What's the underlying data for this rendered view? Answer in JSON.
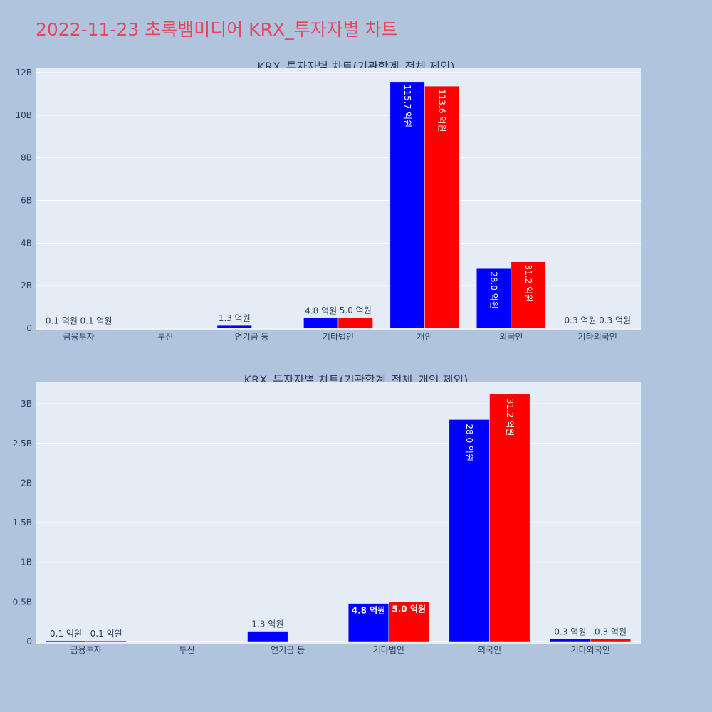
{
  "page": {
    "title": "2022-11-23 초록뱀미디어 KRX_투자자별 차트"
  },
  "colors": {
    "background": "#b0c4de",
    "plot_bg": "#e5ecf6",
    "title": "#e8455e",
    "text": "#2a3f5f",
    "series_1": "#0000ff",
    "series_2": "#ff0000"
  },
  "chart_data": [
    {
      "type": "bar",
      "title": "KRX_투자자별 차트(기관합계_전체 제외)",
      "categories": [
        "금융투자",
        "투신",
        "연기금 등",
        "기타법인",
        "개인",
        "외국인",
        "기타외국인"
      ],
      "series": [
        {
          "color": "#0000ff",
          "values": [
            10000000,
            null,
            130000000,
            480000000,
            11570000000,
            2800000000,
            30000000
          ],
          "labels": [
            "0.1 억원",
            "",
            "1.3 억원",
            "4.8 억원",
            "115.7 억원",
            "28.0 억원",
            "0.3 억원"
          ]
        },
        {
          "color": "#ff0000",
          "values": [
            10000000,
            null,
            null,
            500000000,
            11360000000,
            3120000000,
            30000000
          ],
          "labels": [
            "0.1 억원",
            "",
            "",
            "5.0 억원",
            "113.6 억원",
            "31.2 억원",
            "0.3 억원"
          ]
        }
      ],
      "ylim": [
        0,
        12200000000
      ],
      "yticks": [
        0,
        2000000000,
        4000000000,
        6000000000,
        8000000000,
        10000000000,
        12000000000
      ],
      "ytick_labels": [
        "0",
        "2B",
        "4B",
        "6B",
        "8B",
        "10B",
        "12B"
      ],
      "grid": true
    },
    {
      "type": "bar",
      "title": "KRX_투자자별 차트(기관합계_전체_개인 제외)",
      "categories": [
        "금융투자",
        "투신",
        "연기금 등",
        "기타법인",
        "외국인",
        "기타외국인"
      ],
      "series": [
        {
          "color": "#0000ff",
          "values": [
            10000000,
            null,
            130000000,
            480000000,
            2800000000,
            30000000
          ],
          "labels": [
            "0.1 억원",
            "",
            "1.3 억원",
            "4.8 억원",
            "28.0 억원",
            "0.3 억원"
          ]
        },
        {
          "color": "#ff0000",
          "values": [
            10000000,
            null,
            null,
            500000000,
            3120000000,
            30000000
          ],
          "labels": [
            "0.1 억원",
            "",
            "",
            "5.0 억원",
            "31.2 억원",
            "0.3 억원"
          ]
        }
      ],
      "ylim": [
        0,
        3280000000
      ],
      "yticks": [
        0,
        500000000,
        1000000000,
        1500000000,
        2000000000,
        2500000000,
        3000000000
      ],
      "ytick_labels": [
        "0",
        "0.5B",
        "1B",
        "1.5B",
        "2B",
        "2.5B",
        "3B"
      ],
      "grid": true
    }
  ]
}
